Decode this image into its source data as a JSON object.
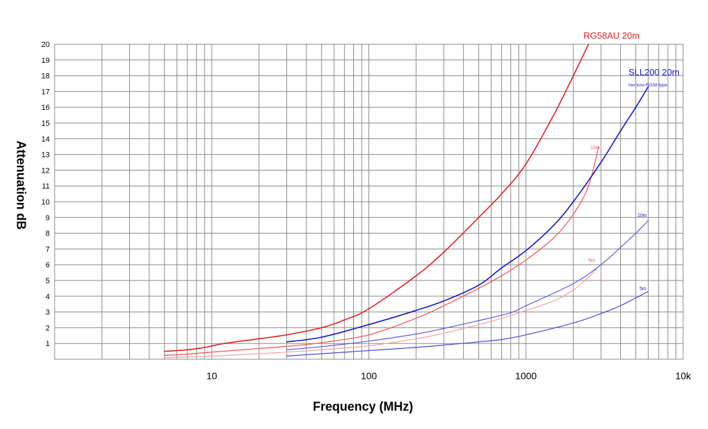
{
  "chart_data": {
    "type": "line",
    "xlabel": "Frequency (MHz)",
    "ylabel": "Attenuation dB",
    "x_scale": "log",
    "xlim": [
      1,
      10000
    ],
    "ylim": [
      0,
      20
    ],
    "grid": true,
    "x_tick_labels": [
      {
        "value": 10,
        "label": "10"
      },
      {
        "value": 100,
        "label": "100"
      },
      {
        "value": 1000,
        "label": "1000"
      },
      {
        "value": 10000,
        "label": "10k"
      }
    ],
    "y_ticks": [
      1,
      2,
      3,
      4,
      5,
      6,
      7,
      8,
      9,
      10,
      11,
      12,
      13,
      14,
      15,
      16,
      17,
      18,
      19,
      20
    ],
    "colors": {
      "rg58_20m": "#e02020",
      "rg58_10m": "#ee5a5a",
      "rg58_5m": "#f4a0a0",
      "sll_20m": "#1414cc",
      "sll_10m": "#5a5ae0",
      "sll_5m": "#4848dc",
      "grid": "#888888"
    },
    "series": [
      {
        "name": "RG58AU 20m",
        "color_key": "rg58_20m",
        "x": [
          5,
          7,
          9,
          12,
          20,
          30,
          50,
          70,
          100,
          200,
          300,
          500,
          700,
          1000,
          1500,
          2000,
          2500
        ],
        "y": [
          0.5,
          0.6,
          0.75,
          1.0,
          1.3,
          1.55,
          2.0,
          2.5,
          3.2,
          5.3,
          6.8,
          9.0,
          10.5,
          12.4,
          15.5,
          18.0,
          20.0
        ]
      },
      {
        "name": "10m",
        "color_key": "rg58_10m",
        "x": [
          5,
          7,
          10,
          20,
          30,
          50,
          100,
          200,
          300,
          500,
          700,
          1000,
          1500,
          2000,
          2500,
          2900
        ],
        "y": [
          0.25,
          0.32,
          0.45,
          0.68,
          0.82,
          1.05,
          1.55,
          2.6,
          3.4,
          4.5,
          5.3,
          6.3,
          7.7,
          9.2,
          11.0,
          13.5
        ]
      },
      {
        "name": "5m",
        "color_key": "rg58_5m",
        "x": [
          5,
          10,
          20,
          30,
          50,
          100,
          200,
          300,
          500,
          700,
          1000,
          1500,
          2000,
          2500,
          2900
        ],
        "y": [
          0.1,
          0.2,
          0.35,
          0.45,
          0.6,
          0.85,
          1.3,
          1.65,
          2.2,
          2.6,
          3.1,
          3.7,
          4.4,
          5.2,
          5.9
        ]
      },
      {
        "name": "SLL200 20m",
        "color_key": "sll_20m",
        "x": [
          30,
          50,
          100,
          200,
          300,
          500,
          700,
          1000,
          1500,
          2000,
          3000,
          4000,
          5000,
          6000
        ],
        "y": [
          1.1,
          1.4,
          2.2,
          3.1,
          3.7,
          4.7,
          5.8,
          6.9,
          8.5,
          10.0,
          12.5,
          14.5,
          16.0,
          17.3
        ]
      },
      {
        "name": "10m",
        "color_key": "sll_10m",
        "x": [
          30,
          50,
          100,
          200,
          300,
          500,
          800,
          1000,
          2000,
          3000,
          4000,
          5000,
          6000
        ],
        "y": [
          0.6,
          0.8,
          1.15,
          1.6,
          1.95,
          2.45,
          2.95,
          3.4,
          4.8,
          6.0,
          7.1,
          8.0,
          8.8
        ]
      },
      {
        "name": "5m",
        "color_key": "sll_5m",
        "x": [
          30,
          50,
          100,
          200,
          300,
          500,
          700,
          1000,
          2000,
          3000,
          4000,
          5000,
          6000
        ],
        "y": [
          0.2,
          0.35,
          0.55,
          0.75,
          0.9,
          1.1,
          1.25,
          1.55,
          2.3,
          2.9,
          3.4,
          3.9,
          4.3
        ]
      }
    ],
    "annotations": [
      {
        "text": "RG58AU 20m",
        "color_key": "rg58_20m",
        "size": "large"
      },
      {
        "text": "SLL200 20m",
        "color_key": "sll_20m",
        "size": "large"
      },
      {
        "text": "low loss RG58 type",
        "color_key": "sll_20m",
        "size": "tiny"
      },
      {
        "text": "10m",
        "color_key": "rg58_10m",
        "size": "tiny"
      },
      {
        "text": "5m",
        "color_key": "rg58_10m",
        "size": "tiny"
      },
      {
        "text": "10m",
        "color_key": "sll_20m",
        "size": "tiny"
      },
      {
        "text": "5m",
        "color_key": "sll_20m",
        "size": "tiny"
      }
    ]
  }
}
